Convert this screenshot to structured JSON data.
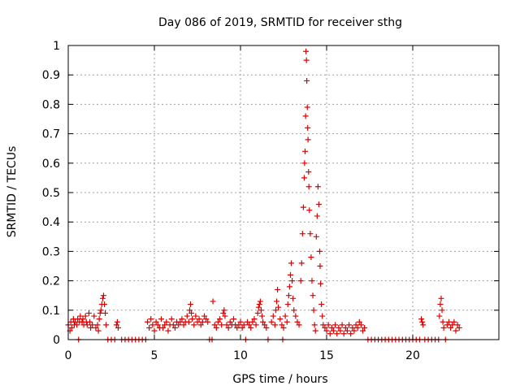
{
  "chart_data": {
    "type": "scatter",
    "title": "Day 086 of 2019, SRMTID for receiver sthg",
    "xlabel": "GPS time / hours",
    "ylabel": "SRMTID / TECUs",
    "xlim": [
      0,
      25
    ],
    "ylim": [
      0,
      1
    ],
    "grid": true,
    "marker": "+",
    "color": "#e00000",
    "x_ticks": [
      0,
      5,
      10,
      15,
      20
    ],
    "x_tick_labels": [
      "0",
      "5",
      "10",
      "15",
      "20"
    ],
    "y_ticks": [
      0,
      0.1,
      0.2,
      0.3,
      0.4,
      0.5,
      0.6,
      0.7,
      0.8,
      0.9,
      1
    ],
    "y_tick_labels": [
      "0",
      "0.1",
      "0.2",
      "0.3",
      "0.4",
      "0.5",
      "0.6",
      "0.7",
      "0.8",
      "0.9",
      "1"
    ],
    "series": [
      {
        "name": "SRMTID",
        "points": [
          [
            0.0,
            0.05
          ],
          [
            0.1,
            0.03
          ],
          [
            0.15,
            0.06
          ],
          [
            0.2,
            0.04
          ],
          [
            0.3,
            0.07
          ],
          [
            0.35,
            0.05
          ],
          [
            0.4,
            0.06
          ],
          [
            0.5,
            0.05
          ],
          [
            0.55,
            0.07
          ],
          [
            0.6,
            0.0
          ],
          [
            0.65,
            0.06
          ],
          [
            0.7,
            0.08
          ],
          [
            0.8,
            0.06
          ],
          [
            0.85,
            0.07
          ],
          [
            0.9,
            0.05
          ],
          [
            1.0,
            0.08
          ],
          [
            1.05,
            0.06
          ],
          [
            1.1,
            0.05
          ],
          [
            1.2,
            0.09
          ],
          [
            1.25,
            0.06
          ],
          [
            1.3,
            0.04
          ],
          [
            1.4,
            0.05
          ],
          [
            1.5,
            0.08
          ],
          [
            1.6,
            0.04
          ],
          [
            1.7,
            0.05
          ],
          [
            1.75,
            0.03
          ],
          [
            1.8,
            0.07
          ],
          [
            1.85,
            0.09
          ],
          [
            1.9,
            0.1
          ],
          [
            1.95,
            0.12
          ],
          [
            2.0,
            0.14
          ],
          [
            2.05,
            0.15
          ],
          [
            2.1,
            0.12
          ],
          [
            2.15,
            0.09
          ],
          [
            2.2,
            0.05
          ],
          [
            2.3,
            0.0
          ],
          [
            2.5,
            0.0
          ],
          [
            2.7,
            0.0
          ],
          [
            2.8,
            0.05
          ],
          [
            2.85,
            0.06
          ],
          [
            2.9,
            0.04
          ],
          [
            3.1,
            0.0
          ],
          [
            3.3,
            0.0
          ],
          [
            3.5,
            0.0
          ],
          [
            3.7,
            0.0
          ],
          [
            3.9,
            0.0
          ],
          [
            4.1,
            0.0
          ],
          [
            4.3,
            0.0
          ],
          [
            4.5,
            0.0
          ],
          [
            4.6,
            0.06
          ],
          [
            4.7,
            0.04
          ],
          [
            4.8,
            0.07
          ],
          [
            4.9,
            0.05
          ],
          [
            5.0,
            0.03
          ],
          [
            5.1,
            0.06
          ],
          [
            5.2,
            0.05
          ],
          [
            5.3,
            0.04
          ],
          [
            5.4,
            0.07
          ],
          [
            5.5,
            0.04
          ],
          [
            5.6,
            0.05
          ],
          [
            5.7,
            0.06
          ],
          [
            5.8,
            0.03
          ],
          [
            5.9,
            0.05
          ],
          [
            6.0,
            0.07
          ],
          [
            6.1,
            0.05
          ],
          [
            6.2,
            0.04
          ],
          [
            6.3,
            0.06
          ],
          [
            6.4,
            0.05
          ],
          [
            6.5,
            0.06
          ],
          [
            6.6,
            0.07
          ],
          [
            6.7,
            0.05
          ],
          [
            6.8,
            0.06
          ],
          [
            6.9,
            0.08
          ],
          [
            7.0,
            0.06
          ],
          [
            7.05,
            0.1
          ],
          [
            7.1,
            0.12
          ],
          [
            7.15,
            0.09
          ],
          [
            7.2,
            0.07
          ],
          [
            7.3,
            0.05
          ],
          [
            7.4,
            0.08
          ],
          [
            7.5,
            0.06
          ],
          [
            7.6,
            0.07
          ],
          [
            7.7,
            0.05
          ],
          [
            7.8,
            0.06
          ],
          [
            7.9,
            0.08
          ],
          [
            8.0,
            0.07
          ],
          [
            8.1,
            0.06
          ],
          [
            8.2,
            0.0
          ],
          [
            8.35,
            0.0
          ],
          [
            8.4,
            0.13
          ],
          [
            8.5,
            0.05
          ],
          [
            8.6,
            0.04
          ],
          [
            8.7,
            0.06
          ],
          [
            8.8,
            0.07
          ],
          [
            8.9,
            0.05
          ],
          [
            9.0,
            0.09
          ],
          [
            9.05,
            0.1
          ],
          [
            9.1,
            0.08
          ],
          [
            9.2,
            0.05
          ],
          [
            9.3,
            0.04
          ],
          [
            9.4,
            0.06
          ],
          [
            9.5,
            0.05
          ],
          [
            9.6,
            0.07
          ],
          [
            9.7,
            0.05
          ],
          [
            9.8,
            0.04
          ],
          [
            9.9,
            0.05
          ],
          [
            10.0,
            0.06
          ],
          [
            10.1,
            0.04
          ],
          [
            10.2,
            0.05
          ],
          [
            10.3,
            0.0
          ],
          [
            10.4,
            0.06
          ],
          [
            10.5,
            0.05
          ],
          [
            10.6,
            0.04
          ],
          [
            10.7,
            0.06
          ],
          [
            10.8,
            0.07
          ],
          [
            10.9,
            0.05
          ],
          [
            11.0,
            0.09
          ],
          [
            11.05,
            0.11
          ],
          [
            11.1,
            0.12
          ],
          [
            11.15,
            0.13
          ],
          [
            11.2,
            0.1
          ],
          [
            11.25,
            0.08
          ],
          [
            11.3,
            0.06
          ],
          [
            11.4,
            0.05
          ],
          [
            11.5,
            0.04
          ],
          [
            11.6,
            0.0
          ],
          [
            11.8,
            0.06
          ],
          [
            11.9,
            0.08
          ],
          [
            12.0,
            0.05
          ],
          [
            12.05,
            0.1
          ],
          [
            12.1,
            0.13
          ],
          [
            12.15,
            0.17
          ],
          [
            12.2,
            0.11
          ],
          [
            12.3,
            0.07
          ],
          [
            12.4,
            0.05
          ],
          [
            12.45,
            0.0
          ],
          [
            12.5,
            0.04
          ],
          [
            12.6,
            0.08
          ],
          [
            12.7,
            0.06
          ],
          [
            12.75,
            0.12
          ],
          [
            12.8,
            0.15
          ],
          [
            12.85,
            0.18
          ],
          [
            12.9,
            0.22
          ],
          [
            12.95,
            0.26
          ],
          [
            13.0,
            0.2
          ],
          [
            13.05,
            0.14
          ],
          [
            13.1,
            0.1
          ],
          [
            13.2,
            0.08
          ],
          [
            13.3,
            0.06
          ],
          [
            13.4,
            0.05
          ],
          [
            13.5,
            0.2
          ],
          [
            13.55,
            0.26
          ],
          [
            13.6,
            0.36
          ],
          [
            13.65,
            0.45
          ],
          [
            13.7,
            0.55
          ],
          [
            13.72,
            0.6
          ],
          [
            13.75,
            0.64
          ],
          [
            13.78,
            0.76
          ],
          [
            13.8,
            0.98
          ],
          [
            13.83,
            0.95
          ],
          [
            13.85,
            0.88
          ],
          [
            13.88,
            0.79
          ],
          [
            13.9,
            0.72
          ],
          [
            13.92,
            0.68
          ],
          [
            13.95,
            0.57
          ],
          [
            13.97,
            0.52
          ],
          [
            14.0,
            0.44
          ],
          [
            14.05,
            0.36
          ],
          [
            14.1,
            0.28
          ],
          [
            14.15,
            0.2
          ],
          [
            14.2,
            0.15
          ],
          [
            14.25,
            0.1
          ],
          [
            14.3,
            0.05
          ],
          [
            14.35,
            0.03
          ],
          [
            14.4,
            0.35
          ],
          [
            14.45,
            0.42
          ],
          [
            14.5,
            0.52
          ],
          [
            14.55,
            0.46
          ],
          [
            14.6,
            0.3
          ],
          [
            14.62,
            0.25
          ],
          [
            14.65,
            0.19
          ],
          [
            14.7,
            0.12
          ],
          [
            14.75,
            0.08
          ],
          [
            14.8,
            0.05
          ],
          [
            14.9,
            0.04
          ],
          [
            15.0,
            0.03
          ],
          [
            15.1,
            0.05
          ],
          [
            15.2,
            0.02
          ],
          [
            15.3,
            0.04
          ],
          [
            15.4,
            0.03
          ],
          [
            15.5,
            0.05
          ],
          [
            15.6,
            0.02
          ],
          [
            15.7,
            0.04
          ],
          [
            15.8,
            0.03
          ],
          [
            15.9,
            0.05
          ],
          [
            16.0,
            0.02
          ],
          [
            16.1,
            0.04
          ],
          [
            16.2,
            0.03
          ],
          [
            16.3,
            0.05
          ],
          [
            16.4,
            0.02
          ],
          [
            16.5,
            0.04
          ],
          [
            16.6,
            0.03
          ],
          [
            16.7,
            0.05
          ],
          [
            16.8,
            0.04
          ],
          [
            16.9,
            0.06
          ],
          [
            17.0,
            0.05
          ],
          [
            17.1,
            0.03
          ],
          [
            17.2,
            0.04
          ],
          [
            17.4,
            0.0
          ],
          [
            17.6,
            0.0
          ],
          [
            17.8,
            0.0
          ],
          [
            18.0,
            0.0
          ],
          [
            18.2,
            0.0
          ],
          [
            18.4,
            0.0
          ],
          [
            18.6,
            0.0
          ],
          [
            18.8,
            0.0
          ],
          [
            19.0,
            0.0
          ],
          [
            19.2,
            0.0
          ],
          [
            19.4,
            0.0
          ],
          [
            19.6,
            0.0
          ],
          [
            19.8,
            0.0
          ],
          [
            20.0,
            0.0
          ],
          [
            20.2,
            0.0
          ],
          [
            20.4,
            0.0
          ],
          [
            20.5,
            0.07
          ],
          [
            20.55,
            0.06
          ],
          [
            20.6,
            0.05
          ],
          [
            20.7,
            0.0
          ],
          [
            20.9,
            0.0
          ],
          [
            21.1,
            0.0
          ],
          [
            21.3,
            0.0
          ],
          [
            21.5,
            0.0
          ],
          [
            21.55,
            0.08
          ],
          [
            21.6,
            0.12
          ],
          [
            21.65,
            0.14
          ],
          [
            21.7,
            0.1
          ],
          [
            21.75,
            0.06
          ],
          [
            21.8,
            0.04
          ],
          [
            21.9,
            0.0
          ],
          [
            22.0,
            0.05
          ],
          [
            22.1,
            0.06
          ],
          [
            22.2,
            0.04
          ],
          [
            22.3,
            0.05
          ],
          [
            22.4,
            0.06
          ],
          [
            22.5,
            0.03
          ],
          [
            22.6,
            0.05
          ],
          [
            22.7,
            0.04
          ]
        ]
      }
    ]
  }
}
